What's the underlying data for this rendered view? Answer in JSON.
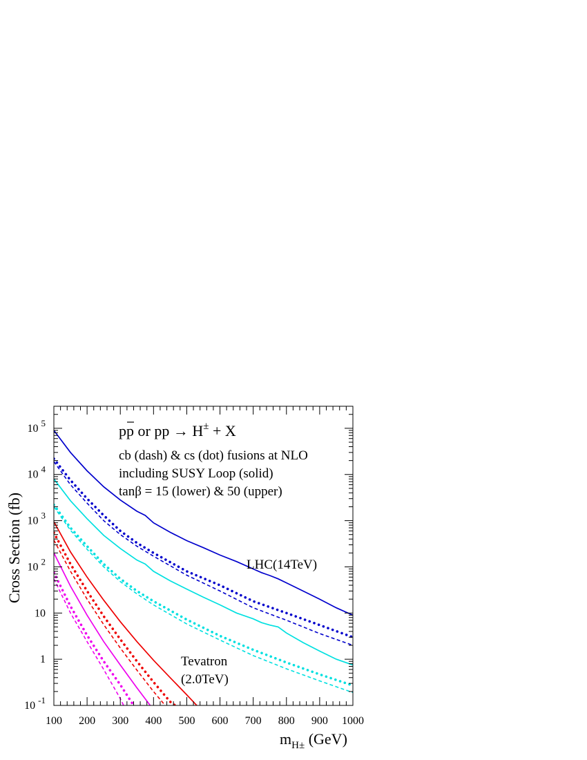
{
  "chart_data": {
    "type": "line",
    "title": "",
    "xlabel": "m",
    "xlabel_sub": "H±",
    "xlabel_unit": "(GeV)",
    "ylabel": "Cross Section (fb)",
    "xlim": [
      100,
      1000
    ],
    "ylim": [
      0.1,
      300000
    ],
    "yscale": "log",
    "grid": false,
    "x_ticks": [
      {
        "v": 100,
        "label": "100"
      },
      {
        "v": 200,
        "label": "200"
      },
      {
        "v": 300,
        "label": "300"
      },
      {
        "v": 400,
        "label": "400"
      },
      {
        "v": 500,
        "label": "500"
      },
      {
        "v": 600,
        "label": "600"
      },
      {
        "v": 700,
        "label": "700"
      },
      {
        "v": 800,
        "label": "800"
      },
      {
        "v": 900,
        "label": "900"
      },
      {
        "v": 1000,
        "label": "1000"
      }
    ],
    "y_ticks": [
      {
        "v": 0.1,
        "base": "10",
        "exp": "-1"
      },
      {
        "v": 1,
        "base": "1",
        "exp": ""
      },
      {
        "v": 10,
        "base": "10",
        "exp": ""
      },
      {
        "v": 100,
        "base": "10",
        "exp": "2"
      },
      {
        "v": 1000,
        "base": "10",
        "exp": "3"
      },
      {
        "v": 10000,
        "base": "10",
        "exp": "4"
      },
      {
        "v": 100000,
        "base": "10",
        "exp": "5"
      }
    ],
    "annotations": {
      "process_a": "p",
      "process_b": "p",
      "process_c": "or pp → H",
      "process_sup": "±",
      "process_d": "+ X",
      "line2": "cb (dash) & cs (dot) fusions at NLO",
      "line3": "including SUSY Loop (solid)",
      "line4": "tanβ = 15 (lower) & 50 (upper)",
      "lhc_label": "LHC(14TeV)",
      "tev_label1": "Tevatron",
      "tev_label2": "(2.0TeV)"
    },
    "colors": {
      "lhc": "#0000cc",
      "lhc_low": "#00e0e0",
      "tev": "#ee0000",
      "tev_low": "#ee00ee"
    },
    "series": [
      {
        "collider": "LHC",
        "tanb": 50,
        "style": "solid",
        "color_key": "lhc",
        "x": [
          100,
          150,
          200,
          250,
          300,
          350,
          375,
          400,
          450,
          500,
          550,
          600,
          650,
          700,
          725,
          750,
          775,
          800,
          850,
          900,
          950,
          1000
        ],
        "y": [
          90000,
          30000,
          12000,
          5400,
          2800,
          1600,
          1300,
          900,
          560,
          370,
          260,
          180,
          130,
          90,
          75,
          65,
          55,
          45,
          30,
          20,
          13,
          9
        ]
      },
      {
        "collider": "LHC",
        "tanb": 50,
        "style": "dot",
        "color_key": "lhc",
        "x": [
          100,
          150,
          200,
          250,
          300,
          350,
          400,
          500,
          600,
          700,
          800,
          900,
          1000
        ],
        "y": [
          22000,
          7500,
          3000,
          1300,
          600,
          330,
          200,
          80,
          40,
          18,
          10,
          5.5,
          3
        ]
      },
      {
        "collider": "LHC",
        "tanb": 50,
        "style": "dash",
        "color_key": "lhc",
        "x": [
          100,
          150,
          200,
          250,
          300,
          350,
          400,
          500,
          600,
          700,
          800,
          900,
          1000
        ],
        "y": [
          19000,
          6000,
          2400,
          1000,
          500,
          280,
          170,
          66,
          30,
          13,
          7,
          3.6,
          2
        ]
      },
      {
        "collider": "LHC",
        "tanb": 15,
        "style": "solid",
        "color_key": "lhc_low",
        "x": [
          100,
          150,
          200,
          250,
          300,
          350,
          375,
          400,
          450,
          500,
          550,
          600,
          650,
          700,
          725,
          750,
          775,
          800,
          850,
          900,
          950,
          1000
        ],
        "y": [
          8000,
          2700,
          1100,
          480,
          250,
          140,
          115,
          80,
          50,
          33,
          22,
          15,
          10,
          7.5,
          6.2,
          5.5,
          5,
          3.7,
          2.3,
          1.5,
          1.0,
          0.75
        ]
      },
      {
        "collider": "LHC",
        "tanb": 15,
        "style": "dot",
        "color_key": "lhc_low",
        "x": [
          100,
          150,
          200,
          250,
          300,
          350,
          400,
          500,
          600,
          700,
          800,
          900,
          1000
        ],
        "y": [
          2200,
          700,
          280,
          115,
          55,
          30,
          18,
          7.2,
          3.2,
          1.6,
          0.85,
          0.47,
          0.27
        ]
      },
      {
        "collider": "LHC",
        "tanb": 15,
        "style": "dash",
        "color_key": "lhc_low",
        "x": [
          100,
          150,
          200,
          250,
          300,
          350,
          400,
          500,
          600,
          700,
          800,
          900,
          1000
        ],
        "y": [
          2000,
          620,
          240,
          100,
          48,
          26,
          15,
          5.8,
          2.6,
          1.2,
          0.62,
          0.34,
          0.19
        ]
      },
      {
        "collider": "Tevatron",
        "tanb": 50,
        "style": "solid",
        "color_key": "tev",
        "x": [
          100,
          150,
          200,
          250,
          300,
          350,
          400,
          450,
          500,
          530
        ],
        "y": [
          950,
          210,
          60,
          19,
          6.5,
          2.4,
          0.95,
          0.4,
          0.17,
          0.1
        ]
      },
      {
        "collider": "Tevatron",
        "tanb": 50,
        "style": "dot",
        "color_key": "tev",
        "x": [
          100,
          150,
          200,
          250,
          300,
          350,
          400,
          450,
          465
        ],
        "y": [
          550,
          115,
          30,
          8.5,
          2.7,
          0.9,
          0.32,
          0.12,
          0.1
        ]
      },
      {
        "collider": "Tevatron",
        "tanb": 50,
        "style": "dash",
        "color_key": "tev",
        "x": [
          100,
          150,
          200,
          250,
          300,
          350,
          400,
          435
        ],
        "y": [
          380,
          80,
          20,
          5.6,
          1.75,
          0.58,
          0.2,
          0.1
        ]
      },
      {
        "collider": "Tevatron",
        "tanb": 15,
        "style": "solid",
        "color_key": "tev_low",
        "x": [
          100,
          150,
          200,
          250,
          300,
          350,
          390
        ],
        "y": [
          200,
          38,
          9,
          2.4,
          0.75,
          0.24,
          0.1
        ]
      },
      {
        "collider": "Tevatron",
        "tanb": 15,
        "style": "dot",
        "color_key": "tev_low",
        "x": [
          100,
          150,
          200,
          250,
          300,
          340
        ],
        "y": [
          75,
          14,
          3.3,
          0.9,
          0.28,
          0.1
        ]
      },
      {
        "collider": "Tevatron",
        "tanb": 15,
        "style": "dash",
        "color_key": "tev_low",
        "x": [
          100,
          150,
          200,
          250,
          300,
          310
        ],
        "y": [
          55,
          10,
          2.4,
          0.6,
          0.14,
          0.1
        ]
      }
    ]
  }
}
